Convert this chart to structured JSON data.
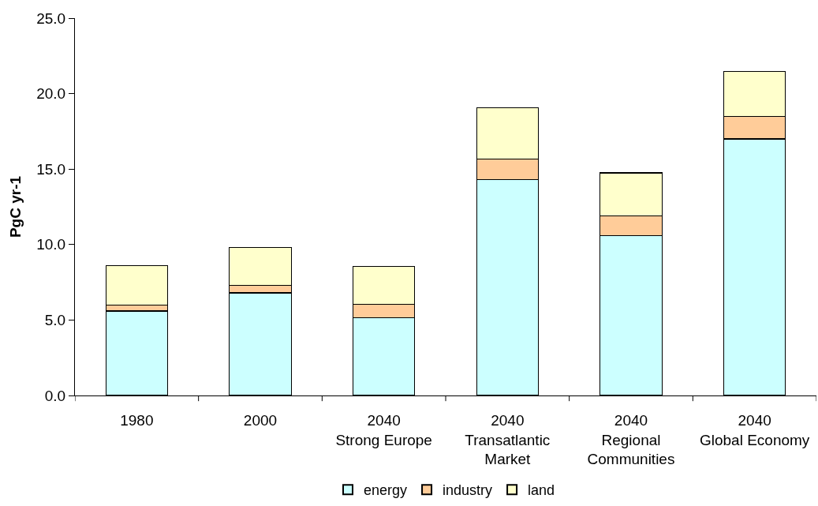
{
  "chart_data": {
    "type": "bar",
    "stacked": true,
    "ylabel": "PgC yr-1",
    "categories": [
      "1980",
      "2000",
      "2040\nStrong Europe",
      "2040\nTransatlantic\nMarket",
      "2040\nRegional\nCommunities",
      "2040\nGlobal Economy"
    ],
    "series": [
      {
        "name": "energy",
        "color": "#ccffff",
        "values": [
          5.6,
          6.8,
          5.15,
          14.3,
          10.6,
          17.0
        ]
      },
      {
        "name": "industry",
        "color": "#ffcc99",
        "values": [
          0.4,
          0.5,
          0.9,
          1.35,
          1.3,
          1.5
        ]
      },
      {
        "name": "land",
        "color": "#ffffcc",
        "values": [
          2.6,
          2.5,
          2.5,
          3.4,
          2.85,
          2.95
        ]
      }
    ],
    "ylim": [
      0,
      25
    ],
    "yticks": [
      {
        "value": 0,
        "label": "0.0"
      },
      {
        "value": 5,
        "label": "5.0"
      },
      {
        "value": 10,
        "label": "10.0"
      },
      {
        "value": 15,
        "label": "15.0"
      },
      {
        "value": 20,
        "label": "20.0"
      },
      {
        "value": 25,
        "label": "25.0"
      }
    ],
    "legend": "bottom"
  }
}
